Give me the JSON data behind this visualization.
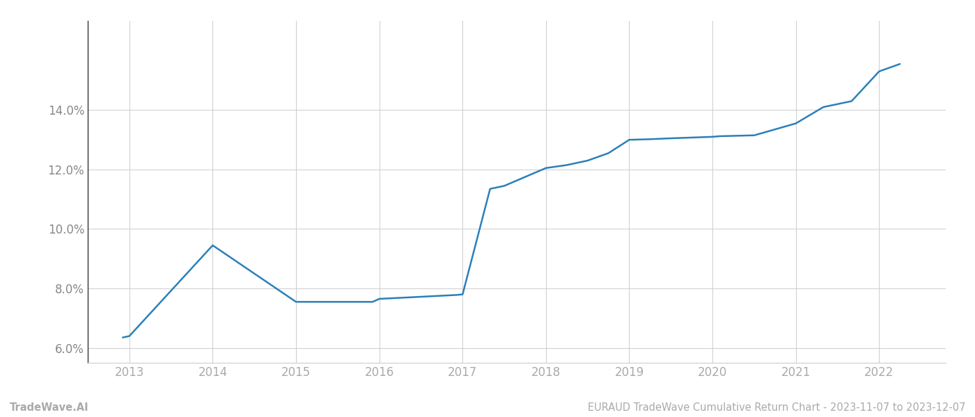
{
  "x": [
    2012.92,
    2013.0,
    2014.0,
    2015.0,
    2015.92,
    2016.0,
    2016.92,
    2017.0,
    2017.33,
    2017.5,
    2018.0,
    2018.25,
    2018.5,
    2018.75,
    2019.0,
    2019.25,
    2019.5,
    2020.0,
    2020.08,
    2020.5,
    2021.0,
    2021.33,
    2021.67,
    2022.0,
    2022.25
  ],
  "y": [
    6.35,
    6.4,
    9.45,
    7.55,
    7.55,
    7.65,
    7.78,
    7.8,
    11.35,
    11.45,
    12.05,
    12.15,
    12.3,
    12.55,
    13.0,
    13.02,
    13.05,
    13.1,
    13.12,
    13.15,
    13.55,
    14.1,
    14.3,
    15.3,
    15.55
  ],
  "line_color": "#2980b9",
  "line_width": 1.8,
  "bg_color": "#ffffff",
  "grid_color": "#cccccc",
  "tick_color": "#888888",
  "xlabel_color": "#aaaaaa",
  "ylabel_color": "#888888",
  "xticks": [
    2013,
    2014,
    2015,
    2016,
    2017,
    2018,
    2019,
    2020,
    2021,
    2022
  ],
  "yticks": [
    6.0,
    8.0,
    10.0,
    12.0,
    14.0
  ],
  "ylim": [
    5.5,
    17.0
  ],
  "xlim": [
    2012.5,
    2022.8
  ],
  "footer_left": "TradeWave.AI",
  "footer_right": "EURAUD TradeWave Cumulative Return Chart - 2023-11-07 to 2023-12-07",
  "footer_color": "#aaaaaa",
  "footer_fontsize": 10.5,
  "tick_fontsize": 12,
  "left_spine_color": "#333333"
}
